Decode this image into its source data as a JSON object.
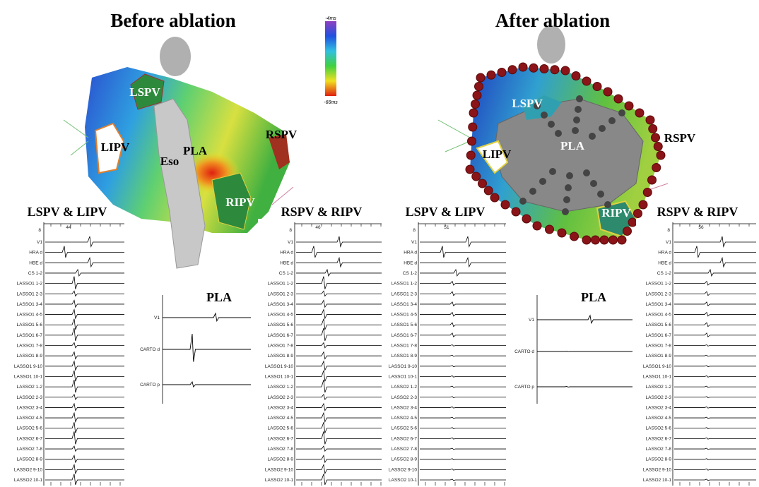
{
  "left": {
    "title": "Before ablation",
    "colorbar": {
      "top": "-4ms",
      "bottom": "-66ms"
    },
    "map_labels": [
      "LSPV",
      "LIPV",
      "Eso",
      "PLA",
      "RSPV",
      "RIPV"
    ]
  },
  "right": {
    "title": "After ablation",
    "map_labels": [
      "LSPV",
      "LIPV",
      "PLA",
      "RSPV",
      "RIPV"
    ]
  },
  "panels": [
    {
      "title": "LSPV & LIPV",
      "ruler": [
        "8",
        "44"
      ],
      "channels": [
        "V1",
        "HRA d",
        "HBE d",
        "CS 1-2",
        "LASSO1 1-2",
        "LASSO1 2-3",
        "LASSO1 3-4",
        "LASSO1 4-5",
        "LASSO1 5-6",
        "LASSO1 6-7",
        "LASSO1 7-8",
        "LASSO1 8-9",
        "LASSO1 9-10",
        "LASSO1 10-1",
        "LASSO2 1-2",
        "LASSO2 2-3",
        "LASSO2 3-4",
        "LASSO2 4-5",
        "LASSO2 5-6",
        "LASSO2 6-7",
        "LASSO2 7-8",
        "LASSO2 8-9",
        "LASSO2 9-10",
        "LASSO2 10-1"
      ]
    },
    {
      "title": "RSPV & RIPV",
      "ruler": [
        "8",
        "46"
      ],
      "channels": [
        "V1",
        "HRA d",
        "HBE d",
        "CS 1-2",
        "LASSO1 1-2",
        "LASSO1 2-3",
        "LASSO1 3-4",
        "LASSO1 4-5",
        "LASSO1 5-6",
        "LASSO1 6-7",
        "LASSO1 7-8",
        "LASSO1 8-9",
        "LASSO1 9-10",
        "LASSO1 10-1",
        "LASSO2 1-2",
        "LASSO2 2-3",
        "LASSO2 3-4",
        "LASSO2 4-5",
        "LASSO2 5-6",
        "LASSO2 6-7",
        "LASSO2 7-8",
        "LASSO2 8-9",
        "LASSO2 9-10",
        "LASSO2 10-1"
      ]
    },
    {
      "title": "LSPV & LIPV",
      "ruler": [
        "8",
        "51"
      ],
      "channels": [
        "V1",
        "HRA d",
        "HBE d",
        "CS 1-2",
        "LASSO1 1-2",
        "LASSO1 2-3",
        "LASSO1 3-4",
        "LASSO1 4-5",
        "LASSO1 5-6",
        "LASSO1 6-7",
        "LASSO1 7-8",
        "LASSO1 8-9",
        "LASSO1 9-10",
        "LASSO1 10-1",
        "LASSO2 1-2",
        "LASSO2 2-3",
        "LASSO2 3-4",
        "LASSO2 4-5",
        "LASSO2 5-6",
        "LASSO2 6-7",
        "LASSO2 7-8",
        "LASSO2 8-9",
        "LASSO2 9-10",
        "LASSO2 10-1"
      ]
    },
    {
      "title": "RSPV & RIPV",
      "ruler": [
        "8",
        "56"
      ],
      "channels": [
        "V1",
        "HRA d",
        "HBE d",
        "CS 1-2",
        "LASSO1 1-2",
        "LASSO1 2-3",
        "LASSO1 3-4",
        "LASSO1 4-5",
        "LASSO1 5-6",
        "LASSO1 6-7",
        "LASSO1 7-8",
        "LASSO1 8-9",
        "LASSO1 9-10",
        "LASSO1 10-1",
        "LASSO2 1-2",
        "LASSO2 2-3",
        "LASSO2 3-4",
        "LASSO2 4-5",
        "LASSO2 5-6",
        "LASSO2 6-7",
        "LASSO2 7-8",
        "LASSO2 8-9",
        "LASSO2 9-10",
        "LASSO2 10-1"
      ]
    }
  ],
  "pla_panels": [
    {
      "title": "PLA",
      "channels": [
        "V1",
        "CARTO d",
        "CARTO p"
      ]
    },
    {
      "title": "PLA",
      "channels": [
        "V1",
        "CARTO d",
        "CARTO p"
      ]
    }
  ]
}
